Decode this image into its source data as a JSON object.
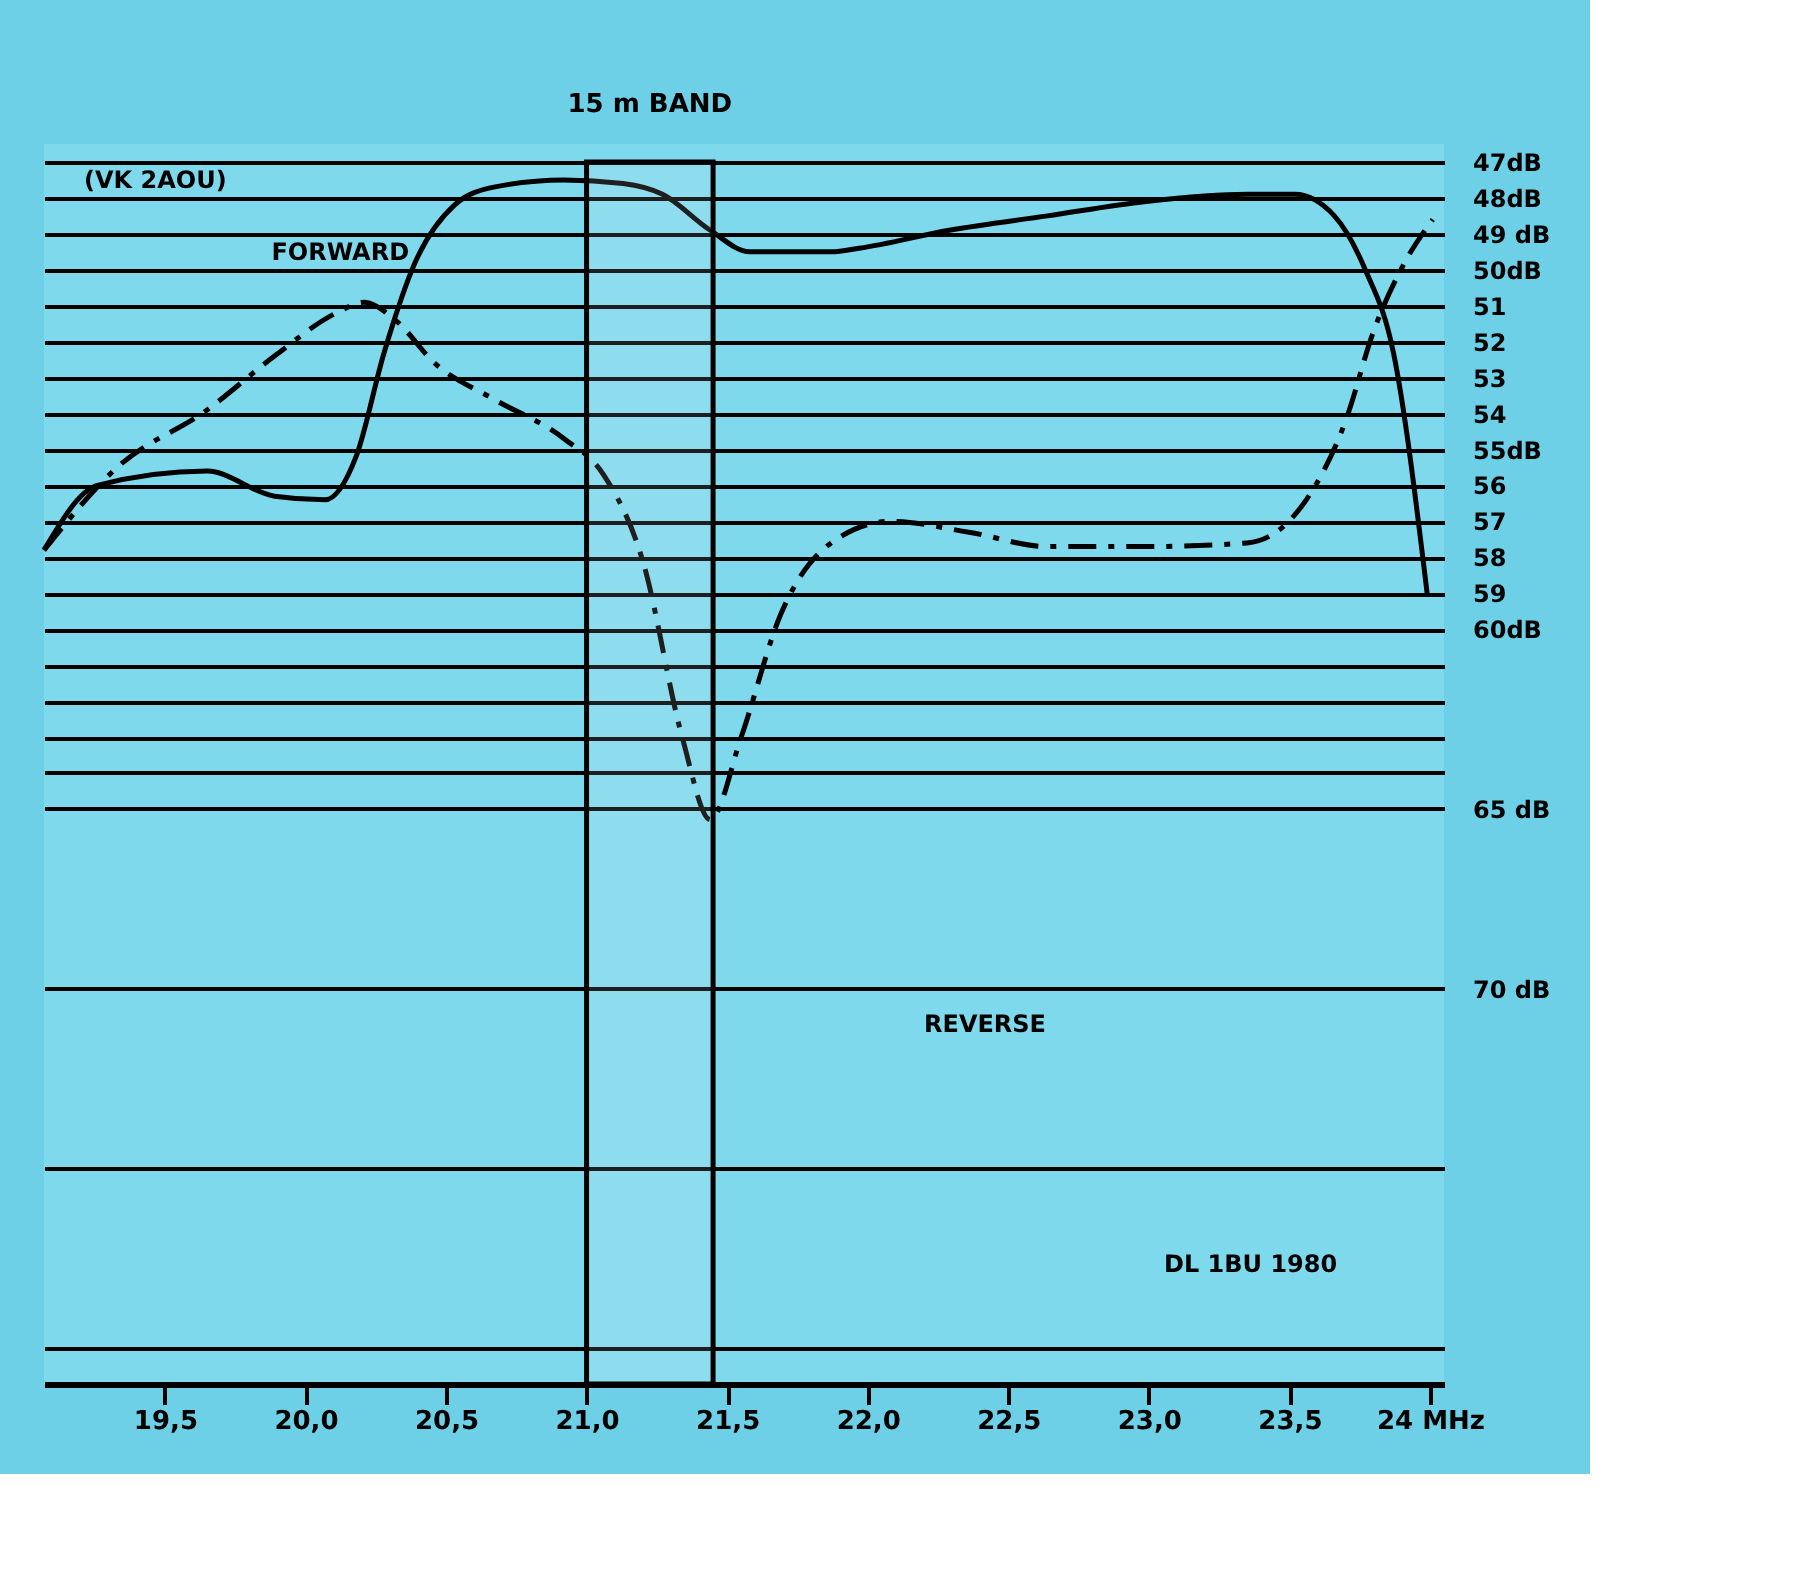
{
  "chart_data": {
    "type": "line",
    "xlim": [
      19.07,
      24.05
    ],
    "xticks": [
      {
        "value": 19.5,
        "label": "19,5"
      },
      {
        "value": 20.0,
        "label": "20,0"
      },
      {
        "value": 20.5,
        "label": "20,5"
      },
      {
        "value": 21.0,
        "label": "21,0"
      },
      {
        "value": 21.5,
        "label": "21,5"
      },
      {
        "value": 22.0,
        "label": "22,0"
      },
      {
        "value": 22.5,
        "label": "22,5"
      },
      {
        "value": 23.0,
        "label": "23,0"
      },
      {
        "value": 23.5,
        "label": "23,5"
      },
      {
        "value": 24.0,
        "label": "24 MHz"
      }
    ],
    "ylim": [
      81,
      46.5
    ],
    "yticks": [
      {
        "value": 47,
        "label": "47dB"
      },
      {
        "value": 48,
        "label": "48dB"
      },
      {
        "value": 49,
        "label": "49 dB"
      },
      {
        "value": 50,
        "label": "50dB"
      },
      51,
      52,
      53,
      54,
      {
        "value": 55,
        "label": "55dB"
      },
      56,
      57,
      58,
      59,
      {
        "value": 60,
        "label": "60dB"
      },
      {
        "value": 61,
        "label": null
      },
      {
        "value": 62,
        "label": null
      },
      {
        "value": 63,
        "label": null
      },
      {
        "value": 64,
        "label": null
      },
      {
        "value": 65,
        "label": "65 dB"
      },
      {
        "value": 70,
        "label": "70 dB"
      },
      {
        "value": 75,
        "label": null
      },
      {
        "value": 80,
        "label": null
      }
    ],
    "grid": "y",
    "marker": "none",
    "series": [
      {
        "color": "#000000",
        "line_style": "solid",
        "x": [
          19.07,
          19.26,
          19.65,
          19.89,
          20.07,
          20.18,
          20.28,
          20.39,
          20.53,
          20.67,
          20.92,
          21.13,
          21.27,
          21.44,
          21.58,
          21.87,
          21.97,
          22.29,
          22.64,
          22.99,
          23.35,
          23.52,
          23.66,
          23.77,
          23.87,
          23.99
        ],
        "values": [
          57.8,
          56.0,
          55.6,
          56.3,
          56.4,
          55.2,
          52.3,
          49.8,
          48.2,
          47.7,
          47.5,
          47.6,
          47.9,
          48.9,
          49.5,
          49.5,
          49.4,
          48.9,
          48.5,
          48.1,
          47.9,
          47.9,
          48.5,
          50.0,
          52.3,
          59.0
        ]
      },
      {
        "color": "#000000",
        "line_style": "dashed",
        "x": [
          19.07,
          19.33,
          19.65,
          19.89,
          20.11,
          20.21,
          20.32,
          20.46,
          20.67,
          20.92,
          21.06,
          21.2,
          21.34,
          21.44,
          21.55,
          21.69,
          21.87,
          22.08,
          22.36,
          22.64,
          22.99,
          23.35,
          23.56,
          23.7,
          23.8,
          23.91,
          24.01
        ],
        "values": [
          57.8,
          55.5,
          53.9,
          52.4,
          51.2,
          50.9,
          51.4,
          52.6,
          53.6,
          54.7,
          55.7,
          58.1,
          63.0,
          65.3,
          63.0,
          59.6,
          57.6,
          57.0,
          57.3,
          57.7,
          57.7,
          57.6,
          56.4,
          54.2,
          51.7,
          49.8,
          48.6
        ]
      }
    ],
    "bands": [
      {
        "axis": "x",
        "from": 21.0,
        "to": 21.45,
        "label": "15 m BAND"
      }
    ],
    "annotations": [
      "(VK 2AOU)",
      "DL 1BU 1980",
      {
        "text": "FORWARD",
        "x": 20.39,
        "y": 49.5
      },
      "REVERSE"
    ]
  }
}
